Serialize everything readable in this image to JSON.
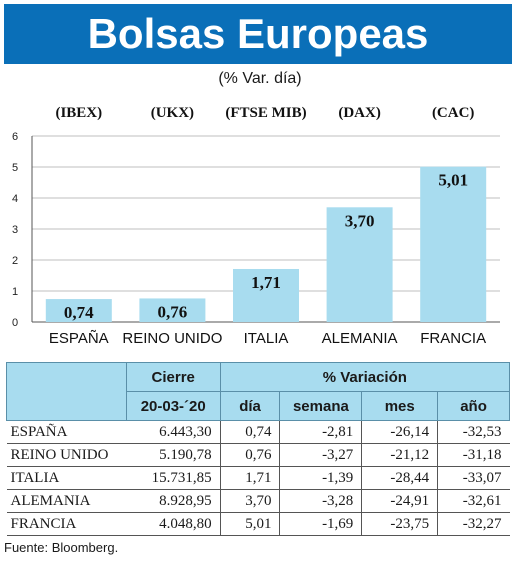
{
  "header": {
    "title": "Bolsas Europeas",
    "subtitle": "(% Var. día)"
  },
  "chart_data": {
    "type": "bar",
    "categories": [
      "ESPAÑA",
      "REINO UNIDO",
      "ITALIA",
      "ALEMANIA",
      "FRANCIA"
    ],
    "indices": [
      "(IBEX)",
      "(UKX)",
      "(FTSE MIB)",
      "(DAX)",
      "(CAC)"
    ],
    "values": [
      0.74,
      0.76,
      1.71,
      3.7,
      5.01
    ],
    "value_labels": [
      "0,74",
      "0,76",
      "1,71",
      "3,70",
      "5,01"
    ],
    "ylim": [
      0,
      6
    ],
    "yticks": [
      "0",
      "1",
      "2",
      "3",
      "4",
      "5",
      "6"
    ],
    "grid": true,
    "bar_color": "#a8dcef",
    "title": "",
    "xlabel": "",
    "ylabel": ""
  },
  "table": {
    "group_headers": {
      "cierre": "Cierre",
      "variacion": "% Variación"
    },
    "columns": [
      "20-03-´20",
      "día",
      "semana",
      "mes",
      "año"
    ],
    "rows": [
      {
        "pais": "ESPAÑA",
        "cierre": "6.443,30",
        "dia": "0,74",
        "semana": "-2,81",
        "mes": "-26,14",
        "anio": "-32,53"
      },
      {
        "pais": "REINO UNIDO",
        "cierre": "5.190,78",
        "dia": "0,76",
        "semana": "-3,27",
        "mes": "-21,12",
        "anio": "-31,18"
      },
      {
        "pais": "ITALIA",
        "cierre": "15.731,85",
        "dia": "1,71",
        "semana": "-1,39",
        "mes": "-28,44",
        "anio": "-33,07"
      },
      {
        "pais": "ALEMANIA",
        "cierre": "8.928,95",
        "dia": "3,70",
        "semana": "-3,28",
        "mes": "-24,91",
        "anio": "-32,61"
      },
      {
        "pais": "FRANCIA",
        "cierre": "4.048,80",
        "dia": "5,01",
        "semana": "-1,69",
        "mes": "-23,75",
        "anio": "-32,27"
      }
    ]
  },
  "footer": {
    "source": "Fuente: Bloomberg."
  }
}
